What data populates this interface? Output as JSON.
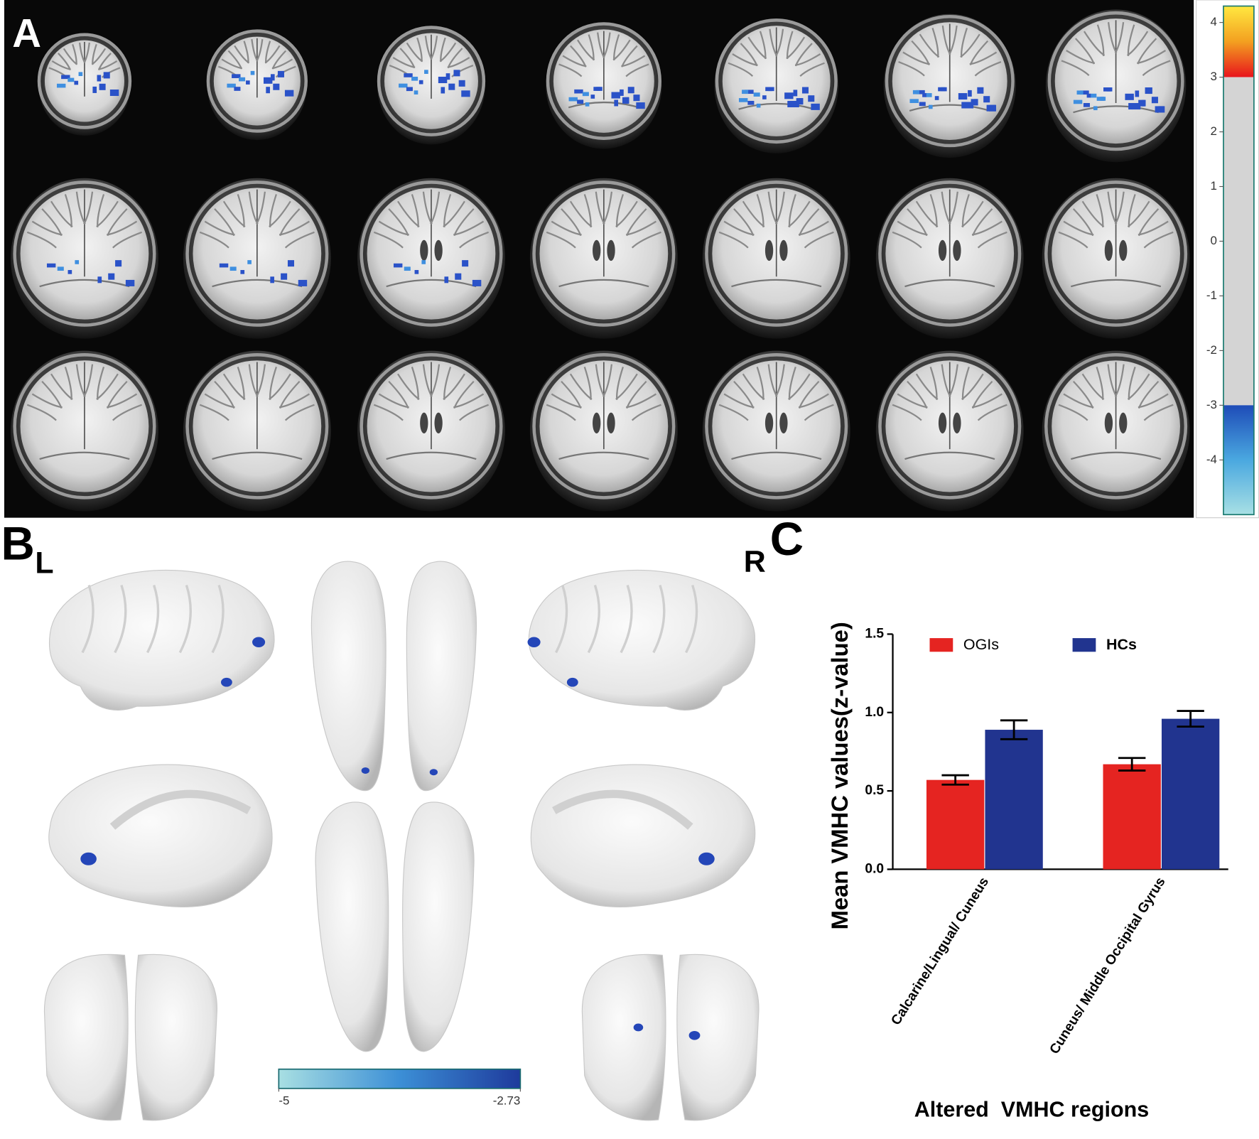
{
  "panels": {
    "a": {
      "label": "A"
    },
    "b": {
      "label": "B",
      "left": "L",
      "right": "R"
    },
    "c": {
      "label": "C"
    }
  },
  "chart_data": [
    {
      "type": "colorbar",
      "orientation": "vertical",
      "ylim": [
        -5,
        4.3
      ],
      "yticks": [
        4,
        3,
        2,
        1,
        0,
        -1,
        -2,
        -3,
        -4
      ],
      "thresholds": [
        -3,
        3
      ],
      "colors": {
        "positive": [
          "#e8141c",
          "#f3a020",
          "#ffe840"
        ],
        "neutral": "#d4d4d4",
        "negative": [
          "#a8e0e4",
          "#4aa8e0",
          "#1e4cb8"
        ]
      }
    },
    {
      "type": "colorbar",
      "orientation": "horizontal",
      "xlim": [
        -5,
        -2.73
      ],
      "xticks": [
        -5,
        -2.73
      ],
      "colors": [
        "#a8dfe2",
        "#3c8fd6",
        "#1e3a9c"
      ]
    },
    {
      "type": "bar",
      "ylabel": "Mean VMHC values(z-value)",
      "xlabel": "Altered  VMHC regions",
      "categories": [
        "Calcarine/Lingual/ Cuneus",
        "Cuneus/ Middle Occipital Gyrus"
      ],
      "series": [
        {
          "name": "OGIs",
          "color": "#e52421",
          "values": [
            0.57,
            0.67
          ],
          "errors": [
            0.03,
            0.04
          ]
        },
        {
          "name": "HCs",
          "color": "#21348f",
          "values": [
            0.89,
            0.96
          ],
          "errors": [
            0.06,
            0.05
          ]
        }
      ],
      "ylim": [
        0,
        1.5
      ],
      "yticks": [
        {
          "value": 0,
          "label": "0.0"
        },
        {
          "value": 0.5,
          "label": "0.5"
        },
        {
          "value": 1,
          "label": "1.0"
        },
        {
          "value": 1.5,
          "label": "1.5"
        }
      ]
    }
  ]
}
